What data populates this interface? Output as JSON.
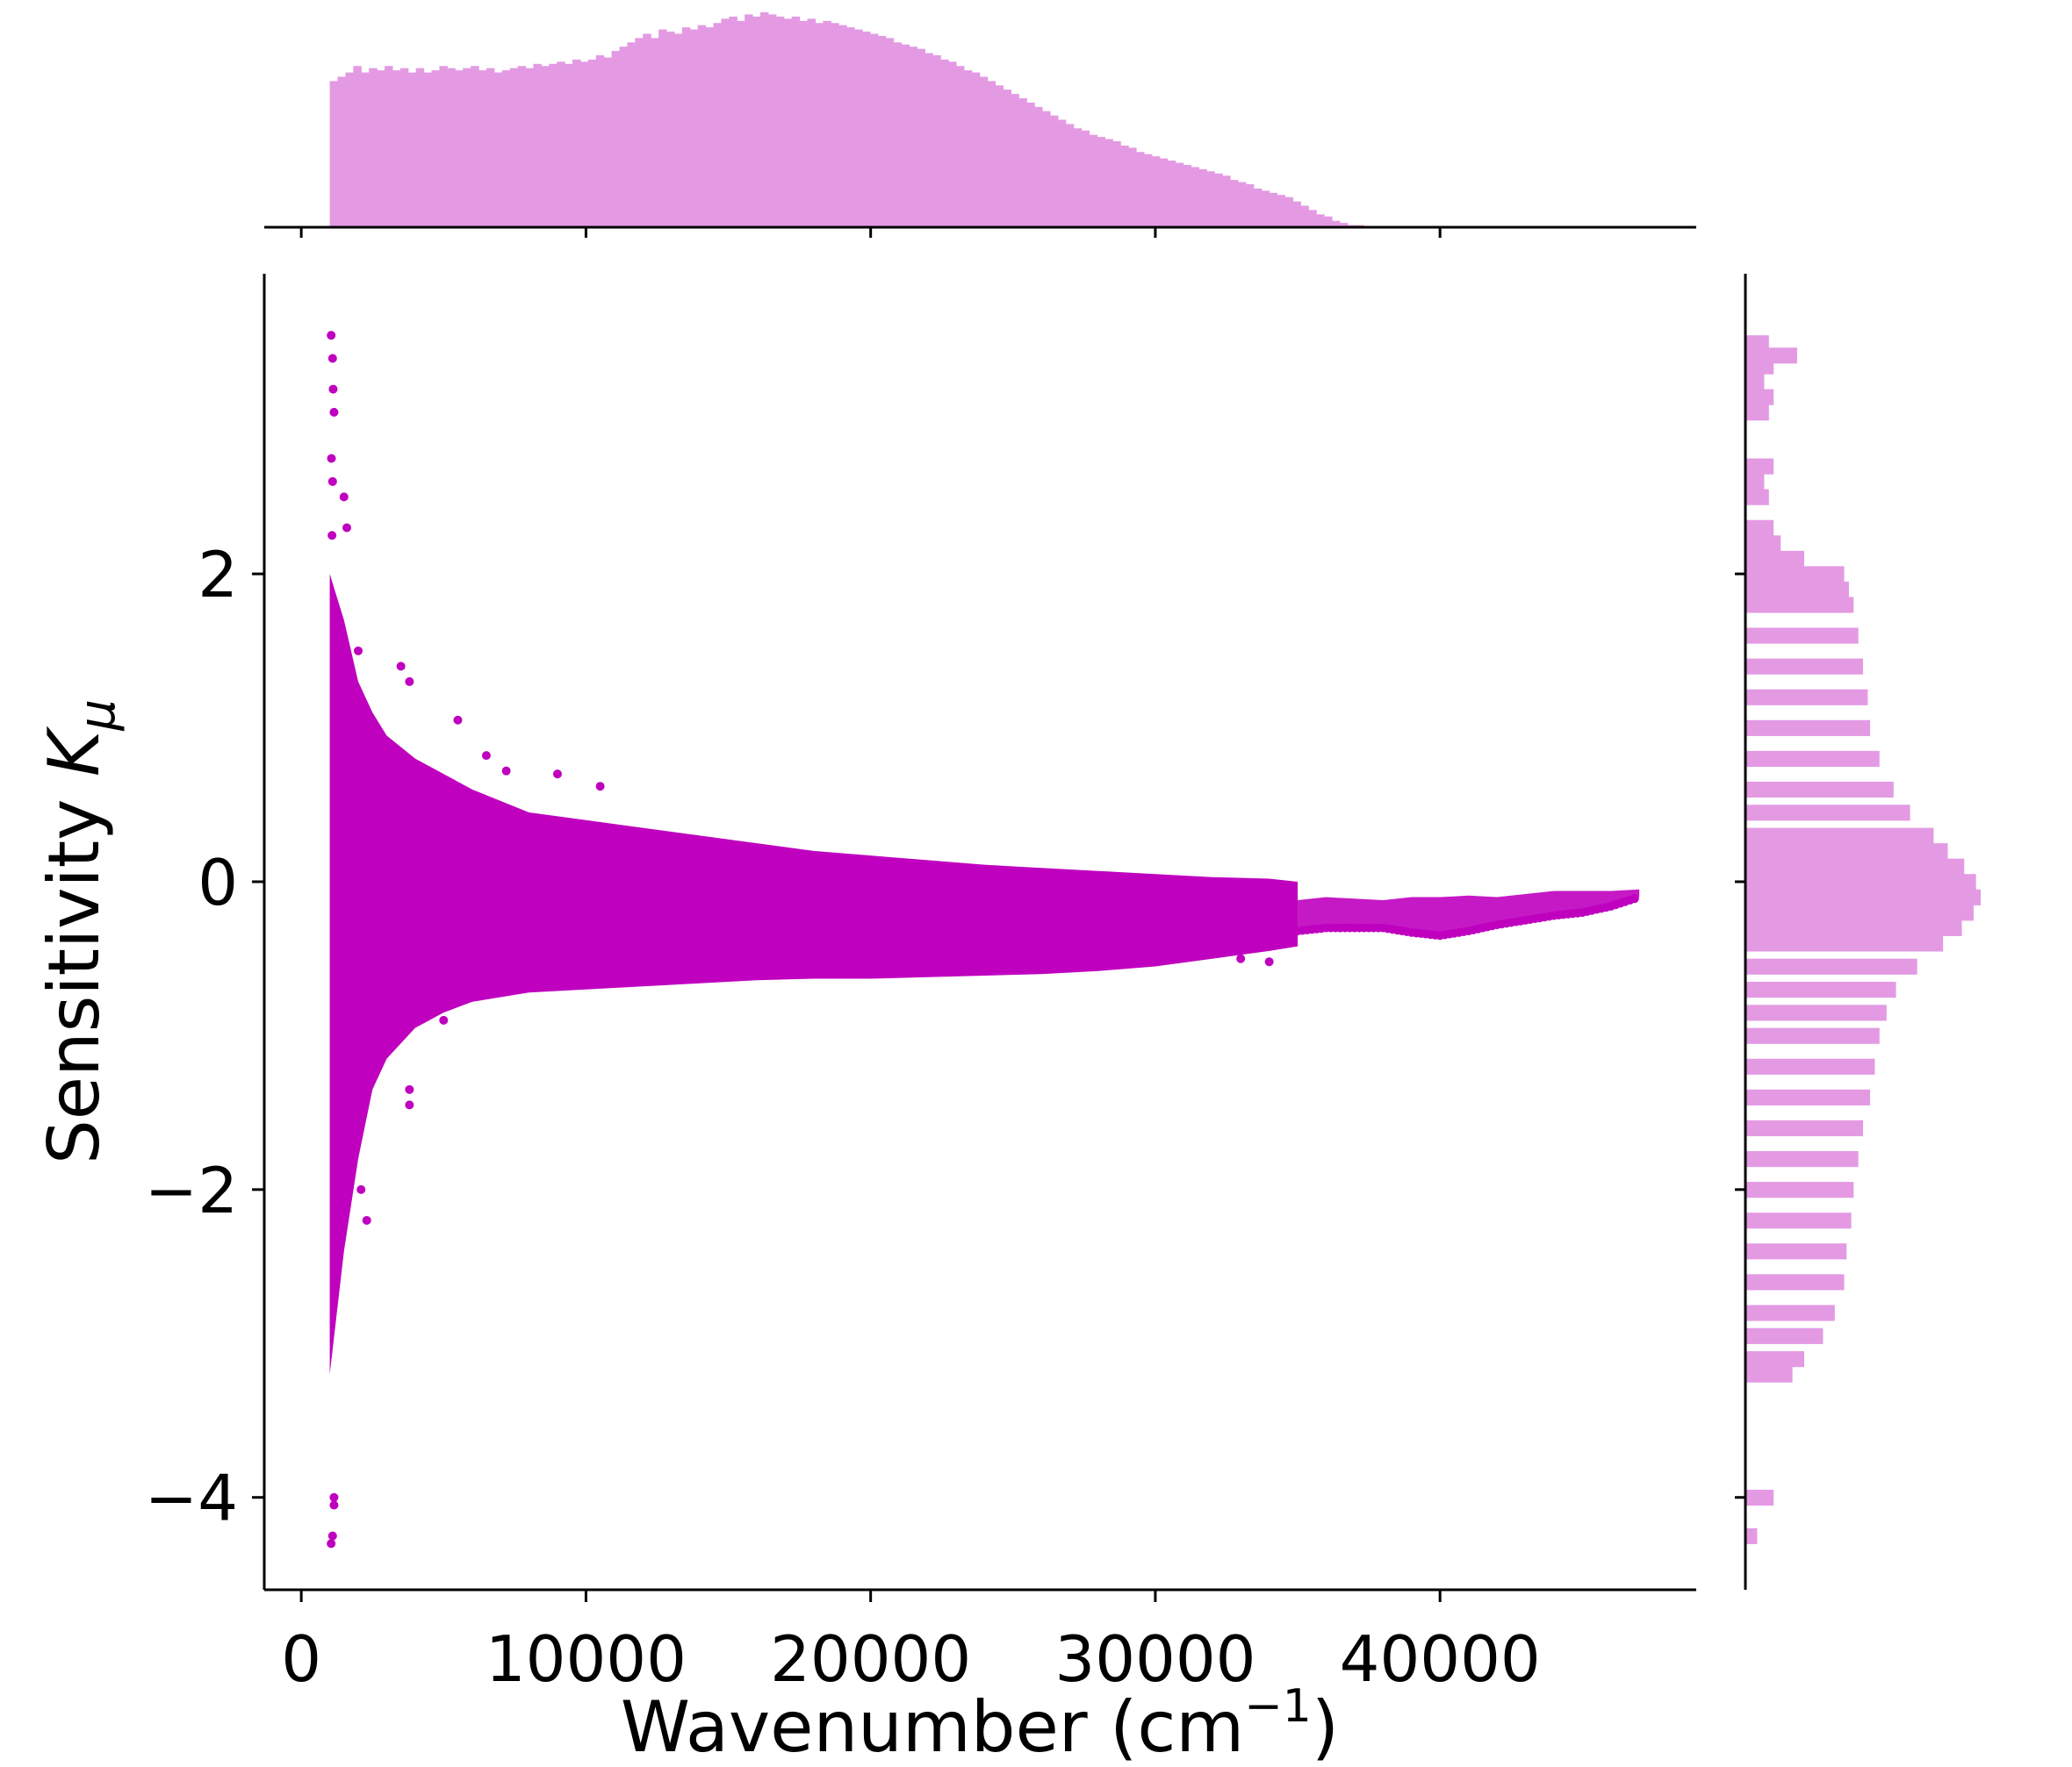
{
  "colors": {
    "scatter": "#bf00bf",
    "hist": "#e39ae3",
    "axis": "#000000",
    "background": "#ffffff"
  },
  "chart_data": {
    "type": "scatter",
    "subtype": "joint-plot with marginal histograms",
    "title": "",
    "xlabel_parts": [
      "Wavenumber (cm",
      "−1",
      ")"
    ],
    "ylabel_parts": [
      "Sensitivity ",
      "K",
      "μ"
    ],
    "xlim": [
      -1300,
      49000
    ],
    "ylim": [
      -4.6,
      3.95
    ],
    "xticks": [
      0,
      10000,
      20000,
      30000,
      40000
    ],
    "xtick_labels": [
      "0",
      "10000",
      "20000",
      "30000",
      "40000"
    ],
    "yticks": [
      -4,
      -2,
      0,
      2
    ],
    "ytick_labels": [
      "−4",
      "−2",
      "0",
      "2"
    ],
    "grid": false,
    "legend": "none",
    "envelope": {
      "x": [
        1000,
        1500,
        2000,
        2500,
        3000,
        4000,
        5000,
        6000,
        8000,
        10000,
        12000,
        14000,
        16000,
        18000,
        20000,
        22000,
        24000,
        26000,
        28000,
        30000,
        32000,
        34000,
        35000
      ],
      "upper": [
        2.0,
        1.7,
        1.3,
        1.1,
        0.95,
        0.8,
        0.7,
        0.6,
        0.45,
        0.4,
        0.35,
        0.3,
        0.25,
        0.2,
        0.17,
        0.14,
        0.11,
        0.09,
        0.07,
        0.05,
        0.03,
        0.02,
        0.0
      ],
      "lower": [
        -3.2,
        -2.4,
        -1.8,
        -1.35,
        -1.15,
        -0.95,
        -0.85,
        -0.78,
        -0.72,
        -0.7,
        -0.68,
        -0.66,
        -0.64,
        -0.63,
        -0.63,
        -0.62,
        -0.61,
        -0.6,
        -0.58,
        -0.55,
        -0.5,
        -0.45,
        -0.42
      ]
    },
    "outliers": [
      {
        "x": 1050,
        "y": 3.55
      },
      {
        "x": 1100,
        "y": 3.4
      },
      {
        "x": 1120,
        "y": 3.2
      },
      {
        "x": 1150,
        "y": 3.05
      },
      {
        "x": 1060,
        "y": 2.75
      },
      {
        "x": 1100,
        "y": 2.6
      },
      {
        "x": 1080,
        "y": 2.25
      },
      {
        "x": 1500,
        "y": 2.5
      },
      {
        "x": 1600,
        "y": 2.3
      },
      {
        "x": 2000,
        "y": 1.5
      },
      {
        "x": 3500,
        "y": 1.4
      },
      {
        "x": 3800,
        "y": 1.3
      },
      {
        "x": 5500,
        "y": 1.05
      },
      {
        "x": 6500,
        "y": 0.82
      },
      {
        "x": 7200,
        "y": 0.72
      },
      {
        "x": 9000,
        "y": 0.7
      },
      {
        "x": 10500,
        "y": 0.62
      },
      {
        "x": 1150,
        "y": -4.0
      },
      {
        "x": 1150,
        "y": -4.05
      },
      {
        "x": 1100,
        "y": -4.25
      },
      {
        "x": 1050,
        "y": -4.3
      },
      {
        "x": 2300,
        "y": -2.2
      },
      {
        "x": 2100,
        "y": -2.0
      },
      {
        "x": 3800,
        "y": -1.45
      },
      {
        "x": 3800,
        "y": -1.35
      },
      {
        "x": 5000,
        "y": -0.9
      },
      {
        "x": 33000,
        "y": -0.5
      },
      {
        "x": 34000,
        "y": -0.52
      }
    ],
    "tail": {
      "x": [
        35000,
        36000,
        37000,
        38000,
        39000,
        40000,
        41000,
        42000,
        43000,
        44000,
        45000,
        46000,
        47000
      ],
      "upper": [
        -0.12,
        -0.1,
        -0.11,
        -0.12,
        -0.1,
        -0.1,
        -0.09,
        -0.1,
        -0.08,
        -0.06,
        -0.06,
        -0.06,
        -0.05
      ],
      "lower": [
        -0.32,
        -0.3,
        -0.3,
        -0.3,
        -0.33,
        -0.35,
        -0.32,
        -0.28,
        -0.25,
        -0.22,
        -0.2,
        -0.16,
        -0.1
      ]
    },
    "x_histogram": {
      "bin_start": 1000,
      "bin_width": 275,
      "max_count": 1.0,
      "counts": [
        0.68,
        0.7,
        0.72,
        0.75,
        0.72,
        0.74,
        0.73,
        0.75,
        0.73,
        0.74,
        0.72,
        0.74,
        0.72,
        0.73,
        0.75,
        0.74,
        0.73,
        0.74,
        0.75,
        0.73,
        0.74,
        0.72,
        0.73,
        0.74,
        0.75,
        0.74,
        0.76,
        0.75,
        0.76,
        0.77,
        0.76,
        0.78,
        0.77,
        0.78,
        0.8,
        0.79,
        0.82,
        0.84,
        0.86,
        0.88,
        0.9,
        0.88,
        0.92,
        0.91,
        0.9,
        0.93,
        0.92,
        0.94,
        0.93,
        0.95,
        0.97,
        0.98,
        0.96,
        0.99,
        0.98,
        1.0,
        0.99,
        0.98,
        0.97,
        0.98,
        0.96,
        0.97,
        0.95,
        0.96,
        0.95,
        0.94,
        0.93,
        0.92,
        0.91,
        0.9,
        0.89,
        0.88,
        0.86,
        0.85,
        0.84,
        0.83,
        0.81,
        0.8,
        0.78,
        0.77,
        0.75,
        0.73,
        0.72,
        0.7,
        0.68,
        0.66,
        0.64,
        0.62,
        0.6,
        0.58,
        0.56,
        0.54,
        0.52,
        0.5,
        0.48,
        0.46,
        0.45,
        0.43,
        0.42,
        0.41,
        0.4,
        0.38,
        0.37,
        0.35,
        0.34,
        0.33,
        0.32,
        0.31,
        0.3,
        0.29,
        0.28,
        0.27,
        0.26,
        0.25,
        0.24,
        0.22,
        0.21,
        0.2,
        0.18,
        0.17,
        0.16,
        0.15,
        0.14,
        0.12,
        0.1,
        0.08,
        0.06,
        0.05,
        0.03,
        0.02,
        0.01,
        0.01
      ]
    },
    "y_histogram": {
      "bins": [
        {
          "y": 3.5,
          "w": 0.1
        },
        {
          "y": 3.42,
          "w": 0.22
        },
        {
          "y": 3.35,
          "w": 0.12
        },
        {
          "y": 3.25,
          "w": 0.08
        },
        {
          "y": 3.15,
          "w": 0.12
        },
        {
          "y": 3.05,
          "w": 0.1
        },
        {
          "y": 2.7,
          "w": 0.12
        },
        {
          "y": 2.6,
          "w": 0.08
        },
        {
          "y": 2.5,
          "w": 0.1
        },
        {
          "y": 2.3,
          "w": 0.12
        },
        {
          "y": 2.2,
          "w": 0.15
        },
        {
          "y": 2.1,
          "w": 0.25
        },
        {
          "y": 2.0,
          "w": 0.42
        },
        {
          "y": 1.9,
          "w": 0.44
        },
        {
          "y": 1.8,
          "w": 0.46
        },
        {
          "y": 1.6,
          "w": 0.48
        },
        {
          "y": 1.4,
          "w": 0.5
        },
        {
          "y": 1.2,
          "w": 0.52
        },
        {
          "y": 1.0,
          "w": 0.53
        },
        {
          "y": 0.8,
          "w": 0.57
        },
        {
          "y": 0.6,
          "w": 0.63
        },
        {
          "y": 0.45,
          "w": 0.7
        },
        {
          "y": 0.3,
          "w": 0.8
        },
        {
          "y": 0.2,
          "w": 0.86
        },
        {
          "y": 0.1,
          "w": 0.93
        },
        {
          "y": 0.0,
          "w": 0.98
        },
        {
          "y": -0.1,
          "w": 1.0
        },
        {
          "y": -0.2,
          "w": 0.97
        },
        {
          "y": -0.3,
          "w": 0.92
        },
        {
          "y": -0.4,
          "w": 0.84
        },
        {
          "y": -0.55,
          "w": 0.73
        },
        {
          "y": -0.7,
          "w": 0.64
        },
        {
          "y": -0.85,
          "w": 0.6
        },
        {
          "y": -1.0,
          "w": 0.57
        },
        {
          "y": -1.2,
          "w": 0.55
        },
        {
          "y": -1.4,
          "w": 0.53
        },
        {
          "y": -1.6,
          "w": 0.5
        },
        {
          "y": -1.8,
          "w": 0.48
        },
        {
          "y": -2.0,
          "w": 0.46
        },
        {
          "y": -2.2,
          "w": 0.45
        },
        {
          "y": -2.4,
          "w": 0.43
        },
        {
          "y": -2.6,
          "w": 0.42
        },
        {
          "y": -2.8,
          "w": 0.38
        },
        {
          "y": -2.95,
          "w": 0.33
        },
        {
          "y": -3.1,
          "w": 0.25
        },
        {
          "y": -3.2,
          "w": 0.2
        },
        {
          "y": -4.0,
          "w": 0.12
        },
        {
          "y": -4.25,
          "w": 0.05
        }
      ],
      "bin_height": 0.1,
      "max_count": 1.0
    }
  }
}
